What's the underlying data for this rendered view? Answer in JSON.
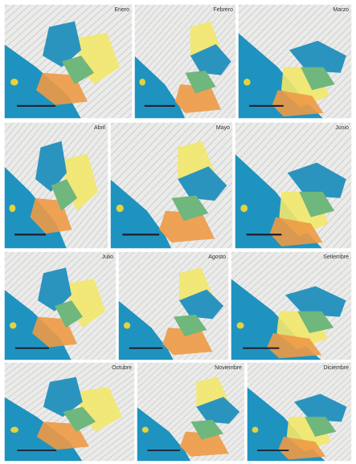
{
  "panels": [
    {
      "label": "Enero"
    },
    {
      "label": "Febrero"
    },
    {
      "label": "Marzo"
    },
    {
      "label": "Abril"
    },
    {
      "label": "Mayo"
    },
    {
      "label": "Junio"
    },
    {
      "label": "Julio"
    },
    {
      "label": "Agosto"
    },
    {
      "label": "Setiembre"
    },
    {
      "label": "Octubre"
    },
    {
      "label": "Noviembre"
    },
    {
      "label": "Diciembre"
    }
  ]
}
